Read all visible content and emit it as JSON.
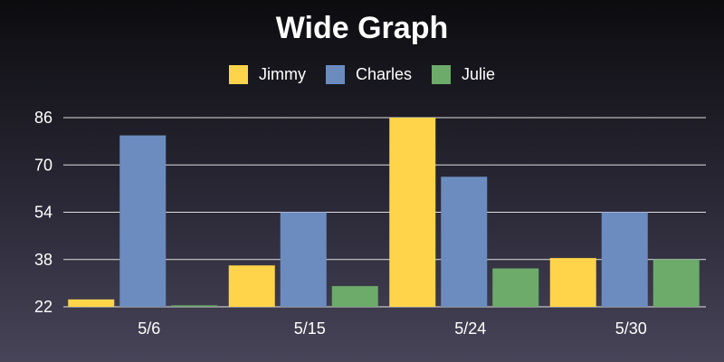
{
  "chart_data": {
    "type": "bar",
    "title": "Wide Graph",
    "categories": [
      "5/6",
      "5/15",
      "5/24",
      "5/30"
    ],
    "series": [
      {
        "name": "Jimmy",
        "color": "#ffd44a",
        "values": [
          24.5,
          36,
          86,
          38.5
        ]
      },
      {
        "name": "Charles",
        "color": "#6c8cbf",
        "values": [
          80,
          54,
          66,
          54
        ]
      },
      {
        "name": "Julie",
        "color": "#6dab6a",
        "values": [
          22.5,
          29,
          35,
          38
        ]
      }
    ],
    "yticks": [
      22,
      38,
      54,
      70,
      86
    ],
    "ylim": [
      22,
      86
    ],
    "grid": true,
    "legend": "top-center"
  }
}
